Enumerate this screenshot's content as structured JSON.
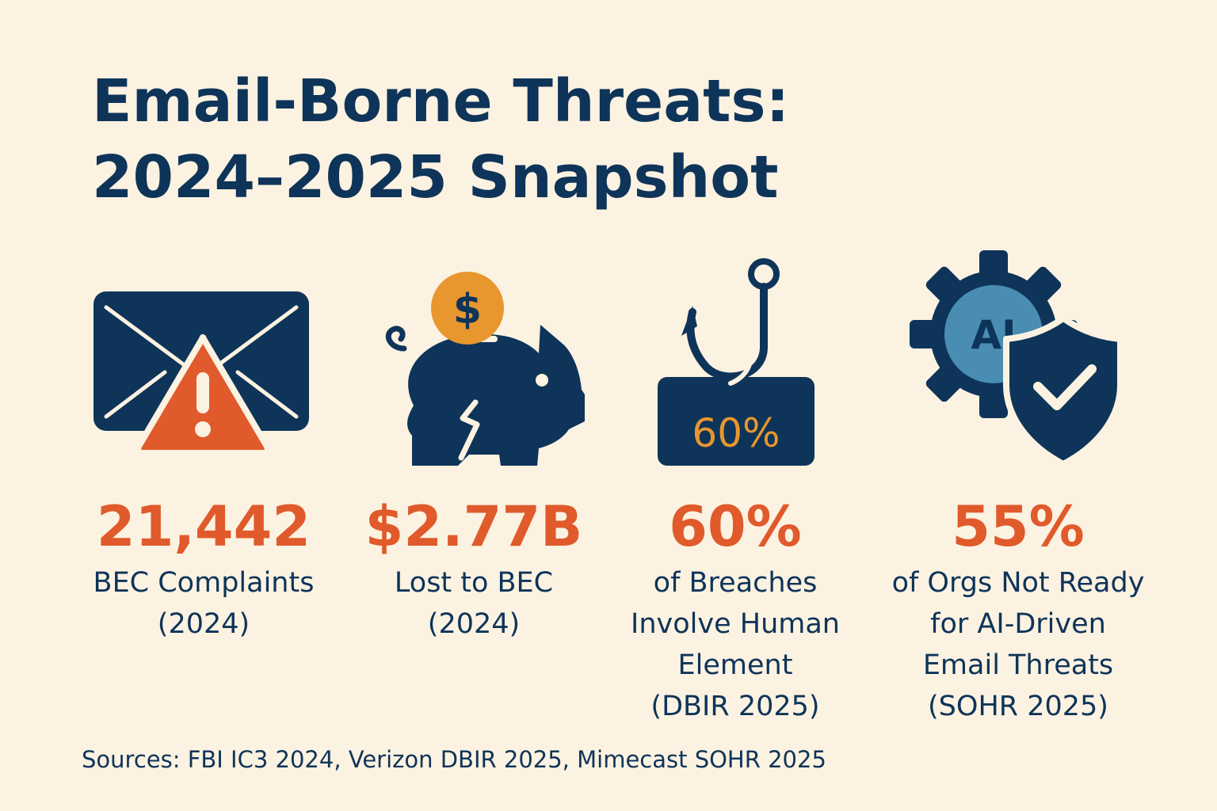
{
  "title": {
    "line1": "Email-Borne Threats:",
    "line2": "2024–2025 Snapshot"
  },
  "colors": {
    "background": "#fcf2e1",
    "navy": "#0e3459",
    "accent_orange": "#e05a2b",
    "gold": "#e8962e",
    "steel_blue": "#4a8db3"
  },
  "stats": [
    {
      "icon": "envelope-warning-icon",
      "value": "21,442",
      "label": [
        "BEC Complaints",
        "(2024)"
      ]
    },
    {
      "icon": "broken-piggy-bank-icon",
      "value": "$2.77B",
      "label": [
        "Lost to BEC",
        "(2024)"
      ]
    },
    {
      "icon": "phishing-hook-icon",
      "badge": "60%",
      "value": "60%",
      "label": [
        "of Breaches",
        "Involve Human",
        "Element",
        "(DBIR 2025)"
      ]
    },
    {
      "icon": "ai-gear-shield-icon",
      "badge": "AI",
      "value": "55%",
      "label": [
        "of Orgs Not Ready",
        "for AI-Driven",
        "Email Threats",
        "(SOHR 2025)"
      ]
    }
  ],
  "sources": "Sources: FBI IC3 2024, Verizon DBIR 2025, Mimecast SOHR 2025"
}
